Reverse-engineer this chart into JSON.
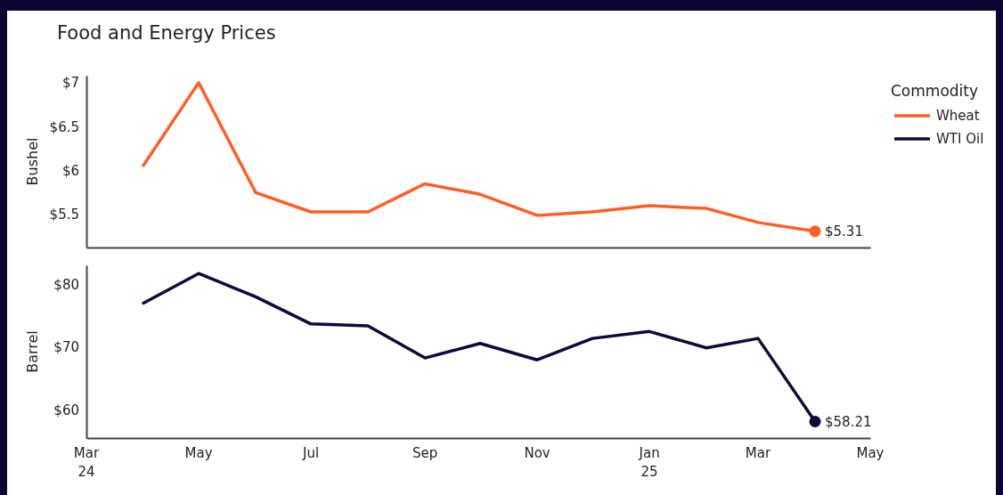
{
  "chart_data": [
    {
      "type": "line",
      "title": "Food and Energy Prices",
      "ylabel": "Bushel",
      "legend_title": "Commodity",
      "legend": "right",
      "x": [
        "2024-04-01",
        "2024-05-01",
        "2024-06-01",
        "2024-07-01",
        "2024-08-01",
        "2024-09-01",
        "2024-10-01",
        "2024-11-01",
        "2024-12-01",
        "2025-01-01",
        "2025-02-01",
        "2025-03-01",
        "2025-04-01"
      ],
      "series": [
        {
          "name": "Wheat",
          "color": "#ff5f27",
          "values": [
            6.06,
            7.0,
            5.75,
            5.53,
            5.53,
            5.85,
            5.73,
            5.49,
            5.53,
            5.6,
            5.57,
            5.41,
            5.31
          ],
          "value_labels": [
            null,
            null,
            null,
            null,
            null,
            null,
            null,
            null,
            null,
            null,
            null,
            null,
            "$5.31"
          ]
        }
      ],
      "xlim": [
        "2024-03-01",
        "2025-05-01"
      ],
      "ylim": [
        5.125,
        7.08
      ],
      "yticks": [
        {
          "value": 5.5,
          "label": "$5.5"
        },
        {
          "value": 6,
          "label": "$6"
        },
        {
          "value": 6.5,
          "label": "$6.5"
        },
        {
          "value": 7,
          "label": "$7"
        }
      ],
      "tick_labels": "y",
      "grid": false,
      "marker": "none",
      "line_style": "solid"
    },
    {
      "type": "line",
      "ylabel": "Barrel",
      "legend": "right",
      "x": [
        "2024-04-01",
        "2024-05-01",
        "2024-06-01",
        "2024-07-01",
        "2024-08-01",
        "2024-09-01",
        "2024-10-01",
        "2024-11-01",
        "2024-12-01",
        "2025-01-01",
        "2025-02-01",
        "2025-03-01",
        "2025-04-01"
      ],
      "series": [
        {
          "name": "WTI Oil",
          "color": "#0d0a3a",
          "values": [
            77.0,
            81.7,
            78.0,
            73.7,
            73.4,
            68.3,
            70.6,
            68.0,
            71.4,
            72.5,
            69.9,
            71.4,
            58.21
          ],
          "value_labels": [
            null,
            null,
            null,
            null,
            null,
            null,
            null,
            null,
            null,
            null,
            null,
            null,
            "$58.21"
          ]
        }
      ],
      "xlim": [
        "2024-03-01",
        "2025-05-01"
      ],
      "xticks": [
        {
          "value": "2024-03-01",
          "label": "Mar\n24"
        },
        {
          "value": "2024-05-01",
          "label": "May"
        },
        {
          "value": "2024-07-01",
          "label": "Jul"
        },
        {
          "value": "2024-09-01",
          "label": "Sep"
        },
        {
          "value": "2024-11-01",
          "label": "Nov"
        },
        {
          "value": "2025-01-01",
          "label": "Jan\n25"
        },
        {
          "value": "2025-03-01",
          "label": "Mar"
        },
        {
          "value": "2025-05-01",
          "label": "May"
        }
      ],
      "ylim": [
        55.6,
        83
      ],
      "yticks": [
        {
          "value": 60,
          "label": "$60"
        },
        {
          "value": 70,
          "label": "$70"
        },
        {
          "value": 80,
          "label": "$80"
        }
      ],
      "grid": false,
      "marker": "none",
      "line_style": "solid"
    }
  ]
}
